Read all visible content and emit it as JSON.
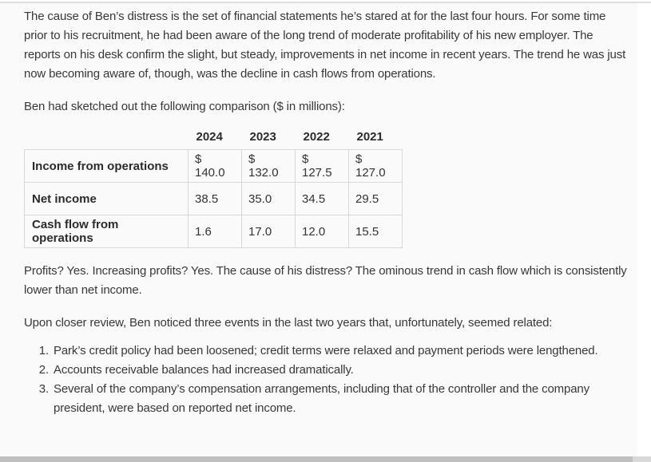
{
  "document": {
    "paragraphs": {
      "intro": "The cause of Ben’s distress is the set of financial statements he’s stared at for the last four hours. For some time prior to his recruitment, he had been aware of the long trend of moderate profitability of his new employer. The reports on his desk confirm the slight, but steady, improvements in net income in recent years. The trend he was just now becoming aware of, though, was the decline in cash flows from operations.",
      "comparison_lead": "Ben had sketched out the following comparison ($ in millions):",
      "analysis": "Profits? Yes. Increasing profits? Yes. The cause of his distress? The ominous trend in cash flow which is consistently lower than net income.",
      "events_lead": "Upon closer review, Ben noticed three events in the last two years that, unfortunately, seemed related:"
    },
    "events": [
      "Park’s credit policy had been loosened; credit terms were relaxed and payment periods were lengthened.",
      "Accounts receivable balances had increased dramatically.",
      "Several of the company’s compensation arrangements, including that of the controller and the company president, were based on reported net income."
    ]
  },
  "chart_data": {
    "type": "table",
    "units": "$ in millions",
    "columns": [
      "2024",
      "2023",
      "2022",
      "2021"
    ],
    "rows": [
      {
        "label": "Income from operations",
        "values": [
          "$ 140.0",
          "$ 132.0",
          "$ 127.5",
          "$ 127.0"
        ],
        "numeric": [
          140.0,
          132.0,
          127.5,
          127.0
        ]
      },
      {
        "label": "Net income",
        "values": [
          "38.5",
          "35.0",
          "34.5",
          "29.5"
        ],
        "numeric": [
          38.5,
          35.0,
          34.5,
          29.5
        ]
      },
      {
        "label": "Cash flow from operations",
        "values": [
          "1.6",
          "17.0",
          "12.0",
          "15.5"
        ],
        "numeric": [
          1.6,
          17.0,
          12.0,
          15.5
        ]
      }
    ]
  },
  "colors": {
    "content_background": "#fafafa",
    "page_background": "#ffffff",
    "text": "#383838",
    "bold_text": "#2b2b2b",
    "table_border": "#d8d8d8",
    "top_strip": "#e0e0e0",
    "scrollbar_track": "#d9d9d9",
    "scrollbar_thumb": "#bfbfbf"
  }
}
